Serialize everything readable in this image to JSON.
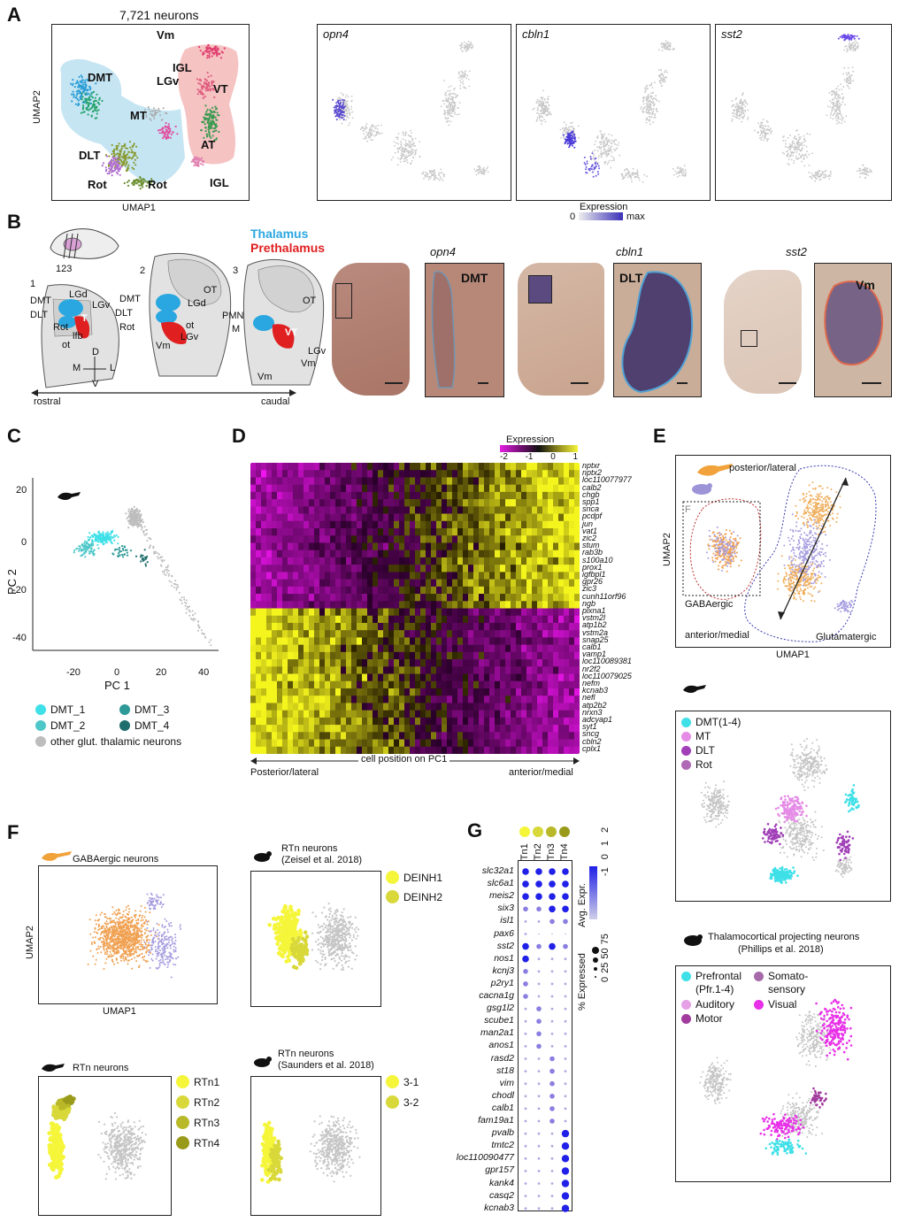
{
  "panels": {
    "A": "A",
    "B": "B",
    "C": "C",
    "D": "D",
    "E": "E",
    "F": "F",
    "G": "G"
  },
  "panelA": {
    "title": "7,721 neurons",
    "xlabel": "UMAP1",
    "ylabel": "UMAP2",
    "regions": [
      "Vm",
      "DMT",
      "IGL",
      "LGv",
      "VT",
      "MT",
      "AT",
      "DLT",
      "IGL",
      "Rot",
      "Rot"
    ],
    "genes": [
      "opn4",
      "cbln1",
      "sst2"
    ],
    "expression_label": "Expression",
    "expr_min": "0",
    "expr_max": "max"
  },
  "panelB": {
    "thalamus": "Thalamus",
    "prethalamus": "Prethalamus",
    "section_nums": "123",
    "s1": "1",
    "s2": "2",
    "s3": "3",
    "labels1": [
      "LGd",
      "DMT",
      "LGv",
      "DLT",
      "T",
      "Rot",
      "lfb",
      "ot"
    ],
    "labels2": [
      "OT",
      "DMT",
      "LGd",
      "DLT",
      "Rot",
      "ot",
      "LGv",
      "Vm"
    ],
    "labels3": [
      "OT",
      "PMN",
      "M",
      "VT",
      "LGv",
      "Vm",
      "Vm"
    ],
    "axis_d": "D",
    "axis_m": "M",
    "axis_l": "L",
    "axis_v": "V",
    "rostral": "rostral",
    "caudal": "caudal",
    "genes": [
      "opn4",
      "cbln1",
      "sst2"
    ],
    "zoom_labels": [
      "DMT",
      "DLT",
      "Vm"
    ]
  },
  "panelC": {
    "xlabel": "PC 1",
    "ylabel": "PC 2",
    "xticks": [
      "-20",
      "0",
      "20",
      "40"
    ],
    "yticks": [
      "20",
      "0",
      "-20",
      "-40"
    ],
    "legend": [
      "DMT_1",
      "DMT_3",
      "DMT_2",
      "DMT_4",
      "other glut. thalamic neurons"
    ],
    "colors": {
      "DMT_1": "#3fe0e8",
      "DMT_2": "#4fc7c9",
      "DMT_3": "#2d9a98",
      "DMT_4": "#1f6e6e",
      "other": "#bdbdbd"
    }
  },
  "panelD": {
    "legend_title": "Expression",
    "legend_ticks": [
      "-2",
      "-1",
      "0",
      "1"
    ],
    "genes": [
      "nptxr",
      "nptx2",
      "loc110077977",
      "calb2",
      "chgb",
      "spp1",
      "snca",
      "pcdpf",
      "jun",
      "vat1",
      "zic2",
      "stum",
      "rab3b",
      "s100a10",
      "prox1",
      "igfbpl1",
      "gpr26",
      "zic3",
      "cunh11orf96",
      "ngb",
      "plxna1",
      "vstm2l",
      "atp1b2",
      "vstm2a",
      "snap25",
      "calb1",
      "vamp1",
      "loc110089381",
      "nr2f2",
      "loc110079025",
      "nefm",
      "kcnab3",
      "nefl",
      "atp2b2",
      "nrxn3",
      "adcyap1",
      "syt1",
      "sncg",
      "cbln2",
      "cplx1"
    ],
    "axis_label": "cell position on PC1",
    "left_label": "Posterior/lateral",
    "right_label": "anterior/medial"
  },
  "panelE": {
    "label_pl": "posterior/lateral",
    "label_am": "anterior/medial",
    "label_gaba": "GABAergic",
    "label_glut": "Glutamatergic",
    "label_f": "F",
    "xlabel": "UMAP1",
    "ylabel": "UMAP2",
    "legend2": [
      "DMT(1-4)",
      "MT",
      "DLT",
      "Rot"
    ],
    "legend2_colors": [
      "#3fe0e8",
      "#e58ce6",
      "#a13fb8",
      "#b06ab5"
    ],
    "title3": "Thalamocortical projecting neurons",
    "title3b": "(Phillips et al. 2018)",
    "legend3": [
      "Prefrontal",
      "(Pfr.1-4)",
      "Somato-",
      "sensory",
      "Auditory",
      "Visual",
      "Motor"
    ]
  },
  "panelF": {
    "t1": "GABAergic neurons",
    "t2a": "RTn neurons",
    "t2b": "(Zeisel et al. 2018)",
    "t3": "RTn neurons",
    "t4a": "RTn neurons",
    "t4b": "(Saunders et al. 2018)",
    "xlabel": "UMAP1",
    "ylabel": "UMAP2",
    "legend2": [
      "DEINH1",
      "DEINH2"
    ],
    "legend3": [
      "RTn1",
      "RTn2",
      "RTn3",
      "RTn4"
    ],
    "legend4": [
      "3-1",
      "3-2"
    ]
  },
  "panelG": {
    "columns": [
      "RTn1",
      "RTn2",
      "RTn3",
      "RTn4"
    ],
    "genes": [
      "slc32a1",
      "slc6a1",
      "meis2",
      "six3",
      "isl1",
      "pax6",
      "sst2",
      "nos1",
      "kcnj3",
      "p2ry1",
      "cacna1g",
      "gsg1l2",
      "scube1",
      "man2a1",
      "anos1",
      "rasd2",
      "st18",
      "vim",
      "chodl",
      "calb1",
      "fam19a1",
      "pvalb",
      "tmtc2",
      "loc110090477",
      "gpr157",
      "kank4",
      "casq2",
      "kcnab3"
    ],
    "avg_label": "Avg. Expr.",
    "avg_ticks": [
      "2",
      "1",
      "0",
      "-1"
    ],
    "pct_label": "% Expressed",
    "pct_ticks": [
      "0",
      "25",
      "50",
      "75"
    ]
  }
}
